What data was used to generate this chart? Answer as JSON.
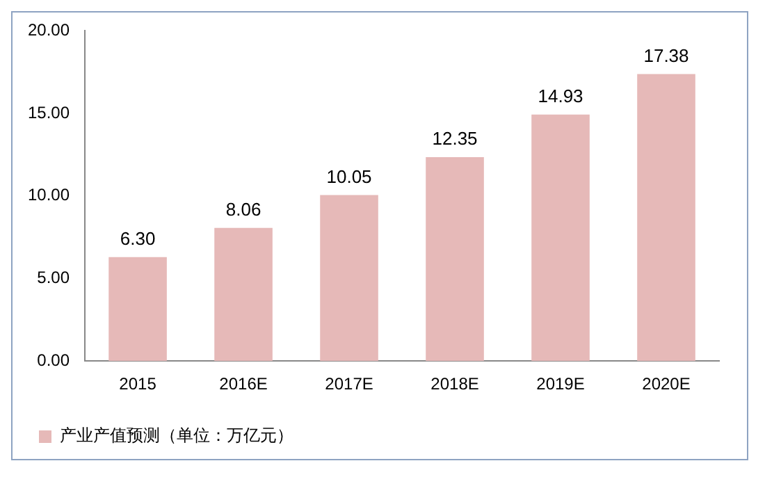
{
  "chart_data": {
    "type": "bar",
    "categories": [
      "2015",
      "2016E",
      "2017E",
      "2018E",
      "2019E",
      "2020E"
    ],
    "series": [
      {
        "name": "产业产值预测（单位：万亿元）",
        "color": "#e6b9b8",
        "values": [
          6.3,
          8.06,
          10.05,
          12.35,
          14.93,
          17.38
        ],
        "value_labels": [
          "6.30",
          "8.06",
          "10.05",
          "12.35",
          "14.93",
          "17.38"
        ]
      }
    ],
    "ylim": [
      0,
      20
    ],
    "yticks": [
      {
        "value": 0,
        "label": "0.00"
      },
      {
        "value": 5,
        "label": "5.00"
      },
      {
        "value": 10,
        "label": "10.00"
      },
      {
        "value": 15,
        "label": "15.00"
      },
      {
        "value": 20,
        "label": "20.00"
      }
    ],
    "grid": false,
    "legend": "bottom left"
  }
}
